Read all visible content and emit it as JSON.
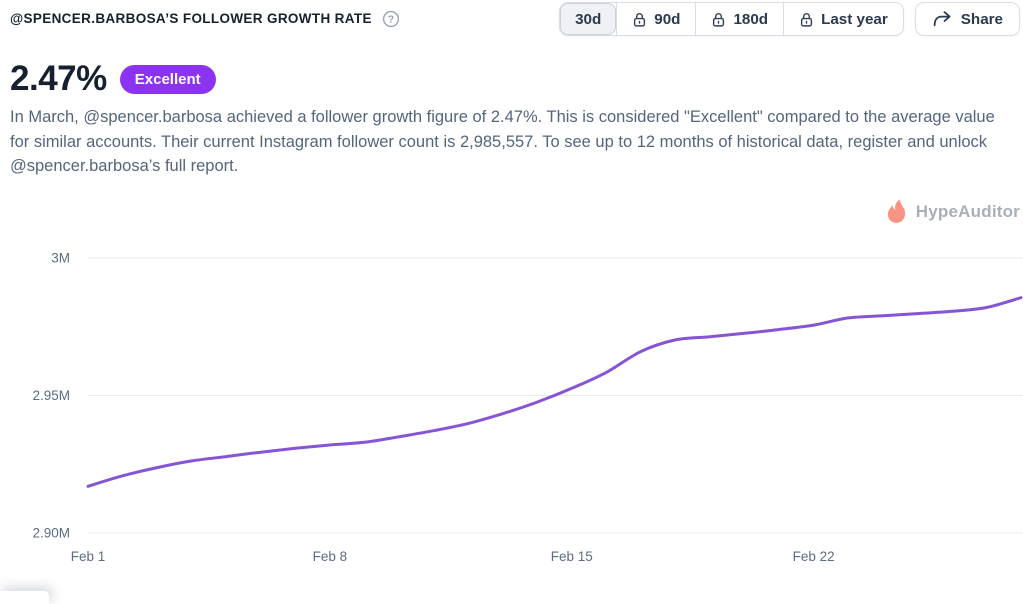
{
  "header": {
    "title": "@SPENCER.BARBOSA’S FOLLOWER GROWTH RATE",
    "periods": [
      {
        "label": "30d",
        "locked": false,
        "selected": true
      },
      {
        "label": "90d",
        "locked": true,
        "selected": false
      },
      {
        "label": "180d",
        "locked": true,
        "selected": false
      },
      {
        "label": "Last year",
        "locked": true,
        "selected": false
      }
    ],
    "share_label": "Share"
  },
  "metric": {
    "value": "2.47%",
    "badge": "Excellent",
    "badge_color": "#8c33f2"
  },
  "description": "In March, @spencer.barbosa achieved a follower growth figure of 2.47%. This is considered \"Excellent\" compared to the average value for similar accounts. Their current Instagram follower count is 2,985,557. To see up to 12 months of historical data, register and unlock @spencer.barbosa’s full report.",
  "watermark": {
    "brand": "HypeAuditor",
    "flame_color": "#fb9383",
    "text_color": "#a9afba"
  },
  "chart_data": {
    "type": "line",
    "title": "",
    "series_name": "Instagram followers",
    "x": [
      "Feb 1",
      "Feb 2",
      "Feb 3",
      "Feb 4",
      "Feb 5",
      "Feb 6",
      "Feb 7",
      "Feb 8",
      "Feb 9",
      "Feb 10",
      "Feb 11",
      "Feb 12",
      "Feb 13",
      "Feb 14",
      "Feb 15",
      "Feb 16",
      "Feb 17",
      "Feb 18",
      "Feb 19",
      "Feb 20",
      "Feb 21",
      "Feb 22",
      "Feb 23",
      "Feb 24",
      "Feb 25",
      "Feb 26",
      "Feb 27",
      "Feb 28"
    ],
    "values": [
      2917000,
      2920800,
      2923800,
      2926200,
      2927800,
      2929400,
      2930800,
      2932000,
      2933000,
      2935000,
      2937200,
      2939800,
      2943400,
      2947600,
      2952600,
      2958400,
      2966000,
      2970200,
      2971400,
      2972600,
      2974000,
      2975600,
      2978200,
      2979000,
      2979800,
      2980600,
      2982000,
      2985557
    ],
    "ylim": [
      2900000,
      3000000
    ],
    "ytick_labels": [
      "3M",
      "2.95M",
      "2.90M"
    ],
    "ytick_values": [
      3000000,
      2950000,
      2900000
    ],
    "xtick_labels": [
      "Feb 1",
      "Feb 8",
      "Feb 15",
      "Feb 22"
    ],
    "xtick_day_indices": [
      0,
      7,
      14,
      21
    ],
    "grid": "horizontal",
    "legend": "none",
    "line_color": "#8655d6",
    "grid_color": "#e8edf3",
    "axis_text_color": "#5d6c82"
  }
}
